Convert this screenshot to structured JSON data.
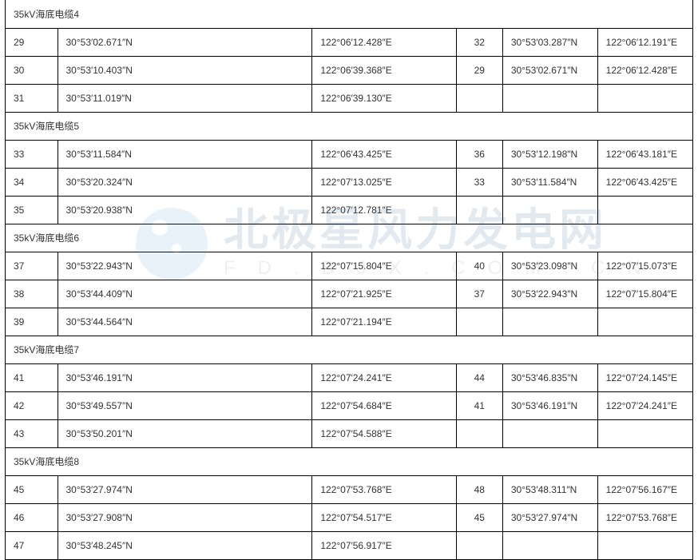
{
  "watermark": {
    "main_text": "北极星风力发电网",
    "sub_text": "FD.BJX.COM.CN"
  },
  "sections": [
    {
      "header": "35kV海底电缆4",
      "rows": [
        {
          "idx": "29",
          "lat": "30°53′02.671″N",
          "lon": "122°06′12.428″E",
          "idx2": "32",
          "lat2": "30°53′03.287″N",
          "lon2": "122°06′12.191″E"
        },
        {
          "idx": "30",
          "lat": "30°53′10.403″N",
          "lon": "122°06′39.368″E",
          "idx2": "29",
          "lat2": "30°53′02.671″N",
          "lon2": "122°06′12.428″E"
        },
        {
          "idx": "31",
          "lat": "30°53′11.019″N",
          "lon": "122°06′39.130″E",
          "idx2": "",
          "lat2": "",
          "lon2": ""
        }
      ]
    },
    {
      "header": "35kV海底电缆5",
      "rows": [
        {
          "idx": "33",
          "lat": "30°53′11.584″N",
          "lon": "122°06′43.425″E",
          "idx2": "36",
          "lat2": "30°53′12.198″N",
          "lon2": "122°06′43.181″E"
        },
        {
          "idx": "34",
          "lat": "30°53′20.324″N",
          "lon": "122°07′13.025″E",
          "idx2": "33",
          "lat2": "30°53′11.584″N",
          "lon2": "122°06′43.425″E"
        },
        {
          "idx": "35",
          "lat": "30°53′20.938″N",
          "lon": "122°07′12.781″E",
          "idx2": "",
          "lat2": "",
          "lon2": ""
        }
      ]
    },
    {
      "header": "35kV海底电缆6",
      "rows": [
        {
          "idx": "37",
          "lat": "30°53′22.943″N",
          "lon": "122°07′15.804″E",
          "idx2": "40",
          "lat2": "30°53′23.098″N",
          "lon2": "122°07′15.073″E"
        },
        {
          "idx": "38",
          "lat": "30°53′44.409″N",
          "lon": "122°07′21.925″E",
          "idx2": "37",
          "lat2": "30°53′22.943″N",
          "lon2": "122°07′15.804″E"
        },
        {
          "idx": "39",
          "lat": "30°53′44.564″N",
          "lon": "122°07′21.194″E",
          "idx2": "",
          "lat2": "",
          "lon2": ""
        }
      ]
    },
    {
      "header": "35kV海底电缆7",
      "rows": [
        {
          "idx": "41",
          "lat": "30°53′46.191″N",
          "lon": "122°07′24.241″E",
          "idx2": "44",
          "lat2": "30°53′46.835″N",
          "lon2": "122°07′24.145″E"
        },
        {
          "idx": "42",
          "lat": "30°53′49.557″N",
          "lon": "122°07′54.684″E",
          "idx2": "41",
          "lat2": "30°53′46.191″N",
          "lon2": "122°07′24.241″E"
        },
        {
          "idx": "43",
          "lat": "30°53′50.201″N",
          "lon": "122°07′54.588″E",
          "idx2": "",
          "lat2": "",
          "lon2": ""
        }
      ]
    },
    {
      "header": "35kV海底电缆8",
      "rows": [
        {
          "idx": "45",
          "lat": "30°53′27.974″N",
          "lon": "122°07′53.768″E",
          "idx2": "48",
          "lat2": "30°53′48.311″N",
          "lon2": "122°07′56.167″E"
        },
        {
          "idx": "46",
          "lat": "30°53′27.908″N",
          "lon": "122°07′54.517″E",
          "idx2": "45",
          "lat2": "30°53′27.974″N",
          "lon2": "122°07′53.768″E"
        },
        {
          "idx": "47",
          "lat": "30°53′48.245″N",
          "lon": "122°07′56.917″E",
          "idx2": "",
          "lat2": "",
          "lon2": ""
        }
      ]
    }
  ]
}
